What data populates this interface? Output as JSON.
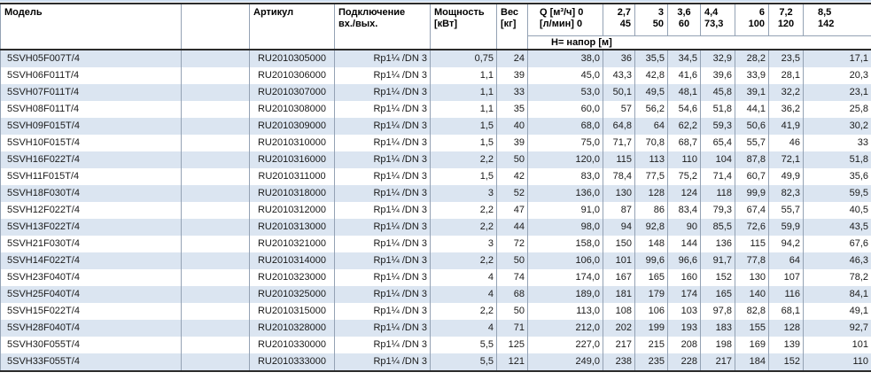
{
  "colors": {
    "row_stripe_blue": "#dbe5f1",
    "grid_line": "#94a2b4",
    "heavy_border": "#2b2b2b",
    "top_accent_line": "#cfdff0",
    "text": "#1a1a1a"
  },
  "table": {
    "header": {
      "model": "Модель",
      "empty": "",
      "artikul": "Артикул",
      "connection_line1": "Подключение",
      "connection_line2": "вх./вых.",
      "power_line1": "Мощность",
      "power_line2": "[кВт]",
      "weight_line1": "Вес",
      "weight_line2": "[кг]",
      "q_line1": "Q [м³/ч] 0",
      "q_line2": "[л/мин] 0",
      "flow_cols": [
        {
          "flow_m3h": "2,7",
          "flow_lmin": "45"
        },
        {
          "flow_m3h": "3",
          "flow_lmin": "50"
        },
        {
          "flow_m3h": "3,6",
          "flow_lmin": "60"
        },
        {
          "flow_m3h": "4,4",
          "flow_lmin": "73,3"
        },
        {
          "flow_m3h": "6",
          "flow_lmin": "100"
        },
        {
          "flow_m3h": "7,2",
          "flow_lmin": "120"
        },
        {
          "flow_m3h": "8,5",
          "flow_lmin": "142"
        }
      ],
      "head_row_label": "Н= напор [м]"
    },
    "rows": [
      {
        "model": "5SVH05F007T/4",
        "artikul": "RU2010305000",
        "connection": "Rp1¼ /DN 3",
        "power_kw": "0,75",
        "weight_kg": "24",
        "head_at_0": "38,0",
        "head_values": [
          "36",
          "35,5",
          "34,5",
          "32,9",
          "28,2",
          "23,5",
          "17,1"
        ]
      },
      {
        "model": "5SVH06F011T/4",
        "artikul": "RU2010306000",
        "connection": "Rp1¼ /DN 3",
        "power_kw": "1,1",
        "weight_kg": "39",
        "head_at_0": "45,0",
        "head_values": [
          "43,3",
          "42,8",
          "41,6",
          "39,6",
          "33,9",
          "28,1",
          "20,3"
        ]
      },
      {
        "model": "5SVH07F011T/4",
        "artikul": "RU2010307000",
        "connection": "Rp1¼ /DN 3",
        "power_kw": "1,1",
        "weight_kg": "33",
        "head_at_0": "53,0",
        "head_values": [
          "50,1",
          "49,5",
          "48,1",
          "45,8",
          "39,1",
          "32,2",
          "23,1"
        ]
      },
      {
        "model": "5SVH08F011T/4",
        "artikul": "RU2010308000",
        "connection": "Rp1¼ /DN 3",
        "power_kw": "1,1",
        "weight_kg": "35",
        "head_at_0": "60,0",
        "head_values": [
          "57",
          "56,2",
          "54,6",
          "51,8",
          "44,1",
          "36,2",
          "25,8"
        ]
      },
      {
        "model": "5SVH09F015T/4",
        "artikul": "RU2010309000",
        "connection": "Rp1¼ /DN 3",
        "power_kw": "1,5",
        "weight_kg": "40",
        "head_at_0": "68,0",
        "head_values": [
          "64,8",
          "64",
          "62,2",
          "59,3",
          "50,6",
          "41,9",
          "30,2"
        ]
      },
      {
        "model": "5SVH10F015T/4",
        "artikul": "RU2010310000",
        "connection": "Rp1¼ /DN 3",
        "power_kw": "1,5",
        "weight_kg": "39",
        "head_at_0": "75,0",
        "head_values": [
          "71,7",
          "70,8",
          "68,7",
          "65,4",
          "55,7",
          "46",
          "33"
        ]
      },
      {
        "model": "5SVH16F022T/4",
        "artikul": "RU2010316000",
        "connection": "Rp1¼ /DN 3",
        "power_kw": "2,2",
        "weight_kg": "50",
        "head_at_0": "120,0",
        "head_values": [
          "115",
          "113",
          "110",
          "104",
          "87,8",
          "72,1",
          "51,8"
        ]
      },
      {
        "model": "5SVH11F015T/4",
        "artikul": "RU2010311000",
        "connection": "Rp1¼ /DN 3",
        "power_kw": "1,5",
        "weight_kg": "42",
        "head_at_0": "83,0",
        "head_values": [
          "78,4",
          "77,5",
          "75,2",
          "71,4",
          "60,7",
          "49,9",
          "35,6"
        ]
      },
      {
        "model": "5SVH18F030T/4",
        "artikul": "RU2010318000",
        "connection": "Rp1¼ /DN 3",
        "power_kw": "3",
        "weight_kg": "52",
        "head_at_0": "136,0",
        "head_values": [
          "130",
          "128",
          "124",
          "118",
          "99,9",
          "82,3",
          "59,5"
        ]
      },
      {
        "model": "5SVH12F022T/4",
        "artikul": "RU2010312000",
        "connection": "Rp1¼ /DN 3",
        "power_kw": "2,2",
        "weight_kg": "47",
        "head_at_0": "91,0",
        "head_values": [
          "87",
          "86",
          "83,4",
          "79,3",
          "67,4",
          "55,7",
          "40,5"
        ]
      },
      {
        "model": "5SVH13F022T/4",
        "artikul": "RU2010313000",
        "connection": "Rp1¼ /DN 3",
        "power_kw": "2,2",
        "weight_kg": "44",
        "head_at_0": "98,0",
        "head_values": [
          "94",
          "92,8",
          "90",
          "85,5",
          "72,6",
          "59,9",
          "43,5"
        ]
      },
      {
        "model": "5SVH21F030T/4",
        "artikul": "RU2010321000",
        "connection": "Rp1¼ /DN 3",
        "power_kw": "3",
        "weight_kg": "72",
        "head_at_0": "158,0",
        "head_values": [
          "150",
          "148",
          "144",
          "136",
          "115",
          "94,2",
          "67,6"
        ]
      },
      {
        "model": "5SVH14F022T/4",
        "artikul": "RU2010314000",
        "connection": "Rp1¼ /DN 3",
        "power_kw": "2,2",
        "weight_kg": "50",
        "head_at_0": "106,0",
        "head_values": [
          "101",
          "99,6",
          "96,6",
          "91,7",
          "77,8",
          "64",
          "46,3"
        ]
      },
      {
        "model": "5SVH23F040T/4",
        "artikul": "RU2010323000",
        "connection": "Rp1¼ /DN 3",
        "power_kw": "4",
        "weight_kg": "74",
        "head_at_0": "174,0",
        "head_values": [
          "167",
          "165",
          "160",
          "152",
          "130",
          "107",
          "78,2"
        ]
      },
      {
        "model": "5SVH25F040T/4",
        "artikul": "RU2010325000",
        "connection": "Rp1¼ /DN 3",
        "power_kw": "4",
        "weight_kg": "68",
        "head_at_0": "189,0",
        "head_values": [
          "181",
          "179",
          "174",
          "165",
          "140",
          "116",
          "84,1"
        ]
      },
      {
        "model": "5SVH15F022T/4",
        "artikul": "RU2010315000",
        "connection": "Rp1¼ /DN 3",
        "power_kw": "2,2",
        "weight_kg": "50",
        "head_at_0": "113,0",
        "head_values": [
          "108",
          "106",
          "103",
          "97,8",
          "82,8",
          "68,1",
          "49,1"
        ]
      },
      {
        "model": "5SVH28F040T/4",
        "artikul": "RU2010328000",
        "connection": "Rp1¼ /DN 3",
        "power_kw": "4",
        "weight_kg": "71",
        "head_at_0": "212,0",
        "head_values": [
          "202",
          "199",
          "193",
          "183",
          "155",
          "128",
          "92,7"
        ]
      },
      {
        "model": "5SVH30F055T/4",
        "artikul": "RU2010330000",
        "connection": "Rp1¼ /DN 3",
        "power_kw": "5,5",
        "weight_kg": "125",
        "head_at_0": "227,0",
        "head_values": [
          "217",
          "215",
          "208",
          "198",
          "169",
          "139",
          "101"
        ]
      },
      {
        "model": "5SVH33F055T/4",
        "artikul": "RU2010333000",
        "connection": "Rp1¼ /DN 3",
        "power_kw": "5,5",
        "weight_kg": "121",
        "head_at_0": "249,0",
        "head_values": [
          "238",
          "235",
          "228",
          "217",
          "184",
          "152",
          "110"
        ]
      }
    ]
  }
}
